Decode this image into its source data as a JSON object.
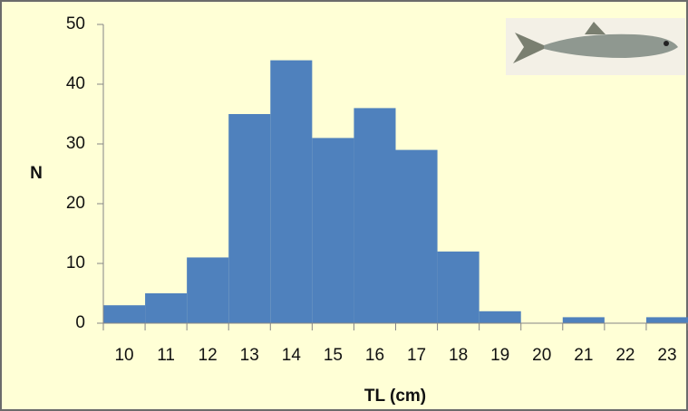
{
  "chart_data": {
    "type": "bar",
    "x_label": "TL (cm)",
    "y_label": "N",
    "categories": [
      "10",
      "11",
      "12",
      "13",
      "14",
      "15",
      "16",
      "17",
      "18",
      "19",
      "20",
      "21",
      "22",
      "23"
    ],
    "values": [
      3,
      5,
      11,
      35,
      44,
      31,
      36,
      29,
      12,
      2,
      0,
      1,
      0,
      1
    ],
    "color": "#4f81bd",
    "ylim": [
      0,
      50
    ],
    "yticks": [
      0,
      10,
      20,
      30,
      40,
      50
    ],
    "grid": false
  }
}
